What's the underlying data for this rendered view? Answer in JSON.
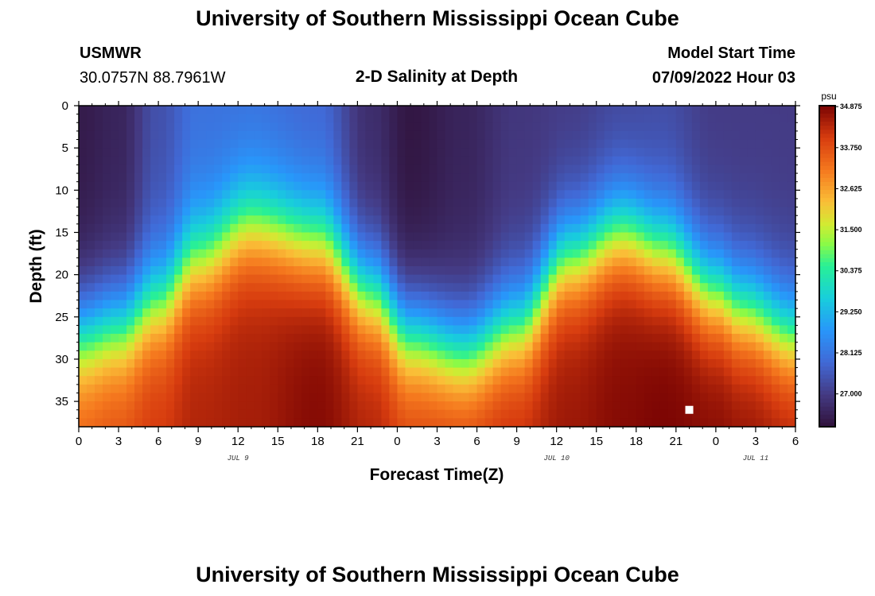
{
  "header": {
    "title": "University of Southern Mississippi Ocean Cube",
    "station": "USMWR",
    "coords": "30.0757N  88.7961W",
    "plot_title": "2-D Salinity at Depth",
    "model_start_label": "Model Start Time",
    "model_start_value": "07/09/2022 Hour 03"
  },
  "footer": {
    "title": "University of Southern Mississippi Ocean Cube"
  },
  "chart_data": {
    "type": "heatmap",
    "title": "2-D Salinity at Depth",
    "xlabel": "Forecast Time(Z)",
    "ylabel": "Depth (ft)",
    "x_range_hours": [
      0,
      54
    ],
    "y_range_ft": [
      0,
      38
    ],
    "x_ticks": [
      "0",
      "3",
      "6",
      "9",
      "12",
      "15",
      "18",
      "21",
      "0",
      "3",
      "6",
      "9",
      "12",
      "15",
      "18",
      "21",
      "0",
      "3",
      "6"
    ],
    "y_ticks": [
      "0",
      "5",
      "10",
      "15",
      "20",
      "25",
      "30",
      "35"
    ],
    "date_labels": [
      {
        "text": "JUL 9",
        "hour": 12
      },
      {
        "text": "JUL 10",
        "hour": 36
      },
      {
        "text": "JUL 11",
        "hour": 51
      }
    ],
    "colorbar": {
      "unit": "psu",
      "min": 26.1,
      "max": 34.9,
      "labels": [
        "34.875",
        "33.750",
        "32.625",
        "31.500",
        "30.375",
        "29.250",
        "28.125",
        "27.000"
      ],
      "label_values": [
        34.875,
        33.75,
        32.625,
        31.5,
        30.375,
        29.25,
        28.125,
        27.0
      ]
    },
    "salinity_profile": {
      "hours": [
        0,
        3,
        6,
        9,
        13,
        18,
        22,
        25,
        29,
        33,
        37,
        41,
        44,
        48,
        50,
        54
      ],
      "isoline_31_depth_ft": [
        27,
        26,
        23,
        18,
        14,
        16,
        22,
        27,
        29,
        26,
        18,
        15,
        17,
        22,
        24,
        27
      ],
      "surface_salinity_psu": [
        26.3,
        26.5,
        27.4,
        28.0,
        28.0,
        27.8,
        26.7,
        26.2,
        26.5,
        26.9,
        27.0,
        27.2,
        27.3,
        27.0,
        27.0,
        27.0
      ],
      "bottom_salinity_psu": [
        33.6,
        33.8,
        34.1,
        34.4,
        34.5,
        34.8,
        34.4,
        34.0,
        34.1,
        34.3,
        34.6,
        34.8,
        34.9,
        34.8,
        34.7,
        34.5
      ]
    },
    "marker": {
      "hour": 46,
      "depth_ft": 36
    }
  }
}
